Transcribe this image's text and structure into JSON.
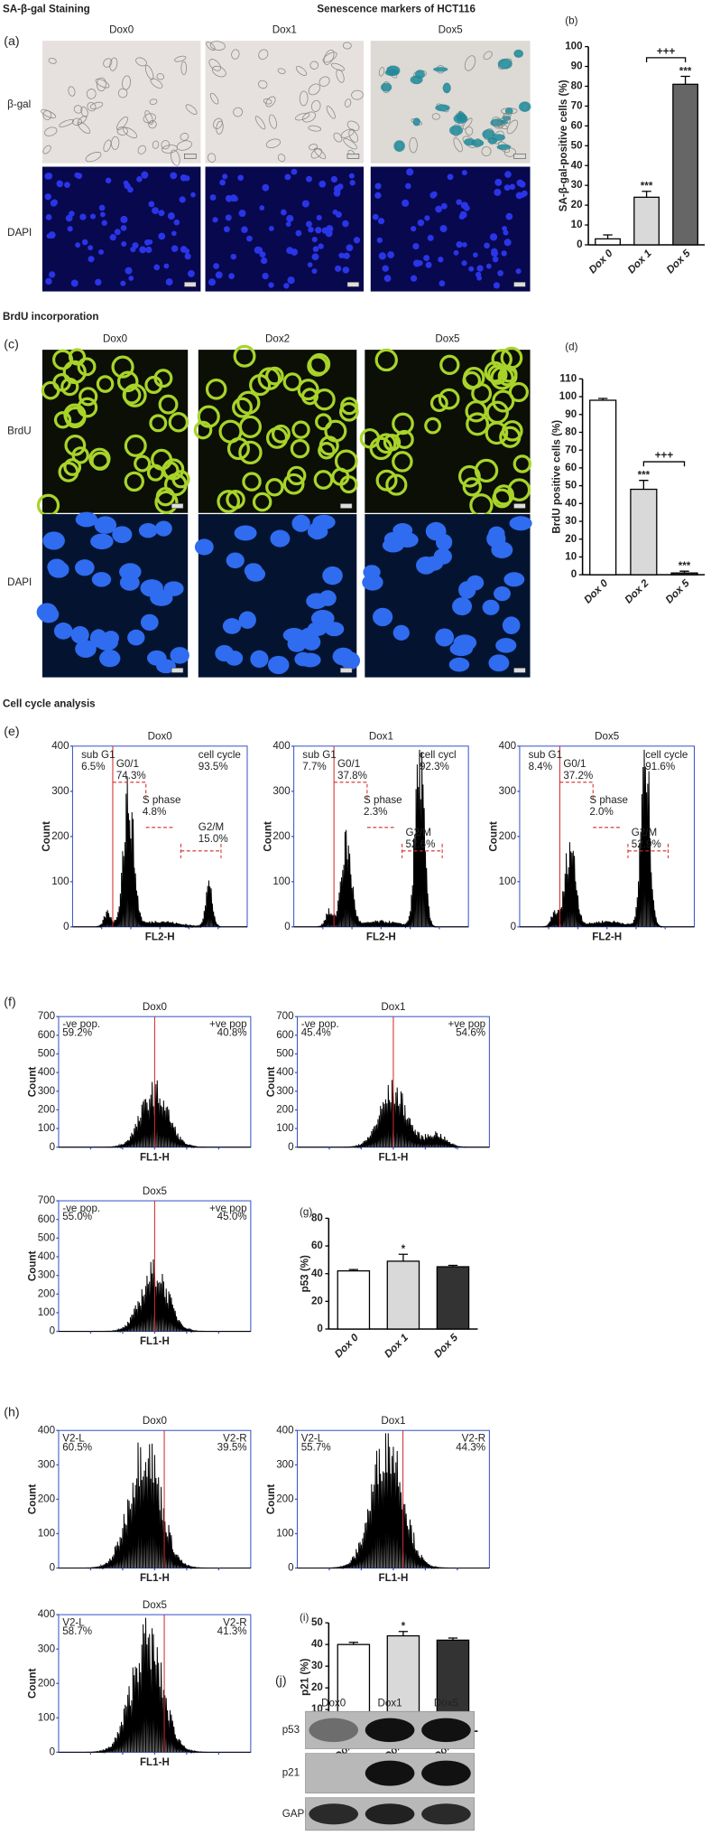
{
  "headings": {
    "staining": "SA-β-gal Staining",
    "title": "Senescence markers of HCT116",
    "brdu": "BrdU incorporation",
    "cell_cycle": "Cell cycle analysis"
  },
  "panel_a": {
    "label": "(a)",
    "columns": [
      "Dox0",
      "Dox1",
      "Dox5"
    ],
    "rows": [
      "β-gal",
      "DAPI"
    ]
  },
  "panel_c": {
    "label": "(c)",
    "columns": [
      "Dox0",
      "Dox2",
      "Dox5"
    ],
    "rows": [
      "BrdU",
      "DAPI"
    ]
  },
  "panel_e": {
    "label": "(e)",
    "plots": [
      {
        "title": "Dox0",
        "ylabel": "Count",
        "xlabel": "FL2-H",
        "ylim": [
          0,
          400
        ],
        "yticks": [
          0,
          100,
          200,
          300,
          400
        ],
        "gates": [
          [
            "sub G1",
            "6.5%"
          ],
          [
            "G0/1",
            "74.3%"
          ],
          [
            "S phase",
            "4.8%"
          ],
          [
            "G2/M",
            "15.0%"
          ],
          [
            "cell cycle",
            "93.5%"
          ]
        ]
      },
      {
        "title": "Dox1",
        "ylabel": "Count",
        "xlabel": "FL2-H",
        "ylim": [
          0,
          400
        ],
        "yticks": [
          0,
          100,
          200,
          300,
          400
        ],
        "gates": [
          [
            "sub G1",
            "7.7%"
          ],
          [
            "G0/1",
            "37.8%"
          ],
          [
            "S phase",
            "2.3%"
          ],
          [
            "G2/M",
            "52.6%"
          ],
          [
            "cell cycl",
            "92.3%"
          ]
        ]
      },
      {
        "title": "Dox5",
        "ylabel": "Count",
        "xlabel": "FL2-H",
        "ylim": [
          0,
          400
        ],
        "yticks": [
          0,
          100,
          200,
          300,
          400
        ],
        "gates": [
          [
            "sub G1",
            "8.4%"
          ],
          [
            "G0/1",
            "37.2%"
          ],
          [
            "S phase",
            "2.0%"
          ],
          [
            "G2/M",
            "52.9%"
          ],
          [
            "cell cycle",
            "91.6%"
          ]
        ]
      }
    ]
  },
  "panel_f": {
    "label": "(f)",
    "plots": [
      {
        "title": "Dox0",
        "ylabel": "Count",
        "xlabel": "FL1-H",
        "ylim": [
          0,
          700
        ],
        "yticks": [
          0,
          100,
          200,
          300,
          400,
          500,
          600,
          700
        ],
        "gates": [
          [
            "-ve pop.",
            "59.2%"
          ],
          [
            "+ve pop",
            "40.8%"
          ]
        ]
      },
      {
        "title": "Dox1",
        "ylabel": "Count",
        "xlabel": "FL1-H",
        "ylim": [
          0,
          700
        ],
        "yticks": [
          0,
          100,
          200,
          300,
          400,
          500,
          600,
          700
        ],
        "gates": [
          [
            "-ve pop.",
            "45.4%"
          ],
          [
            "+ve pop",
            "54.6%"
          ]
        ]
      },
      {
        "title": "Dox5",
        "ylabel": "Count",
        "xlabel": "FL1-H",
        "ylim": [
          0,
          700
        ],
        "yticks": [
          0,
          100,
          200,
          300,
          400,
          500,
          600,
          700
        ],
        "gates": [
          [
            "-ve pop.",
            "55.0%"
          ],
          [
            "+ve pop",
            "45.0%"
          ]
        ]
      }
    ]
  },
  "panel_h": {
    "label": "(h)",
    "plots": [
      {
        "title": "Dox0",
        "ylabel": "Count",
        "xlabel": "FL1-H",
        "ylim": [
          0,
          400
        ],
        "yticks": [
          0,
          100,
          200,
          300,
          400
        ],
        "gates": [
          [
            "V2-L",
            "60.5%"
          ],
          [
            "V2-R",
            "39.5%"
          ]
        ]
      },
      {
        "title": "Dox1",
        "ylabel": "Count",
        "xlabel": "FL1-H",
        "ylim": [
          0,
          400
        ],
        "yticks": [
          0,
          100,
          200,
          300,
          400
        ],
        "gates": [
          [
            "V2-L",
            "55.7%"
          ],
          [
            "V2-R",
            "44.3%"
          ]
        ]
      },
      {
        "title": "Dox5",
        "ylabel": "Count",
        "xlabel": "FL1-H",
        "ylim": [
          0,
          400
        ],
        "yticks": [
          0,
          100,
          200,
          300,
          400
        ],
        "gates": [
          [
            "V2-L",
            "58.7%"
          ],
          [
            "V2-R",
            "41.3%"
          ]
        ]
      }
    ]
  },
  "panel_j": {
    "label": "(j)",
    "columns": [
      "Dox0",
      "Dox1",
      "Dox5"
    ],
    "rows": [
      "p53",
      "p21",
      "GAPDH"
    ]
  },
  "chart_data": [
    {
      "type": "bar",
      "label": "(b)",
      "ylabel": "SA-β-gal-positive cells (%)",
      "categories": [
        "Dox 0",
        "Dox 1",
        "Dox 5"
      ],
      "values": [
        3,
        24,
        81
      ],
      "errors": [
        2,
        3,
        4
      ],
      "colors": [
        "#ffffff",
        "#d9d9d9",
        "#666666"
      ],
      "ylim": [
        0,
        100
      ],
      "yticks": [
        0,
        10,
        20,
        30,
        40,
        50,
        60,
        70,
        80,
        90,
        100
      ],
      "annotations": [
        "***",
        "***",
        "+++"
      ]
    },
    {
      "type": "bar",
      "label": "(d)",
      "ylabel": "BrdU positive cells (%)",
      "categories": [
        "Dox 0",
        "Dox 2",
        "Dox 5"
      ],
      "values": [
        98,
        48,
        1
      ],
      "errors": [
        1,
        5,
        1
      ],
      "colors": [
        "#ffffff",
        "#d9d9d9",
        "#444444"
      ],
      "ylim": [
        0,
        110
      ],
      "yticks": [
        0,
        10,
        20,
        30,
        40,
        50,
        60,
        70,
        80,
        90,
        100,
        110
      ],
      "annotations": [
        "***",
        "***",
        "+++"
      ]
    },
    {
      "type": "bar",
      "label": "(g)",
      "ylabel": "p53 (%)",
      "categories": [
        "Dox 0",
        "Dox 1",
        "Dox 5"
      ],
      "values": [
        42,
        49,
        45
      ],
      "errors": [
        1,
        5,
        1
      ],
      "colors": [
        "#ffffff",
        "#d9d9d9",
        "#333333"
      ],
      "ylim": [
        0,
        80
      ],
      "yticks": [
        0,
        20,
        40,
        60,
        80
      ],
      "annotations": [
        "*"
      ]
    },
    {
      "type": "bar",
      "label": "(i)",
      "ylabel": "p21 (%)",
      "categories": [
        "Dox 0",
        "Dox 1",
        "Dox 5"
      ],
      "values": [
        40,
        44,
        42
      ],
      "errors": [
        1,
        2,
        1
      ],
      "colors": [
        "#ffffff",
        "#d9d9d9",
        "#333333"
      ],
      "ylim": [
        0,
        50
      ],
      "yticks": [
        0,
        10,
        20,
        30,
        40,
        50
      ],
      "annotations": [
        "*"
      ]
    }
  ]
}
